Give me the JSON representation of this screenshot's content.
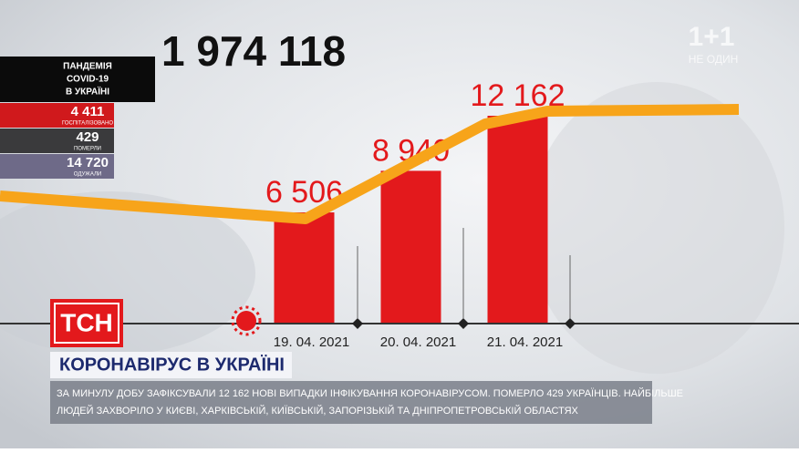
{
  "chart_data": {
    "type": "bar",
    "categories": [
      "19. 04. 2021",
      "20. 04. 2021",
      "21. 04. 2021"
    ],
    "values": [
      6506,
      8940,
      12162
    ],
    "value_labels": [
      "6 506",
      "8 940",
      "12 162"
    ],
    "color": "#e3191c"
  },
  "total": "1 974 118",
  "sidebar": {
    "title": [
      "ПАНДЕМІЯ",
      "COVID-19",
      "В УКРАЇНІ"
    ],
    "hospitalized": {
      "value": "4 411",
      "label": "ГОСПІТАЛІЗОВАНО"
    },
    "died": {
      "value": "429",
      "label": "ПОМЕРЛИ"
    },
    "recovered": {
      "value": "14 720",
      "label": "ОДУЖАЛИ"
    }
  },
  "channel": {
    "logo": "1+1",
    "slogan": "НЕ ОДИН"
  },
  "tsn_logo": "ТСН",
  "headline": "КОРОНАВІРУС В УКРАЇНІ",
  "ticker": [
    "ЗА МИНУЛУ ДОБУ ЗАФІКСУВАЛИ 12 162 НОВІ ВИПАДКИ ІНФІКУВАННЯ КОРОНАВІРУСОМ. ПОМЕРЛО 429 УКРАЇНЦІВ. НАЙБІЛЬШЕ",
    "ЛЮДЕЙ ЗАХВОРІЛО У КИЄВІ, ХАРКІВСЬКІЙ, КИЇВСЬКІЙ, ЗАПОРІЗЬКІЙ ТА ДНІПРОПЕТРОВСЬКІЙ ОБЛАСТЯХ"
  ]
}
